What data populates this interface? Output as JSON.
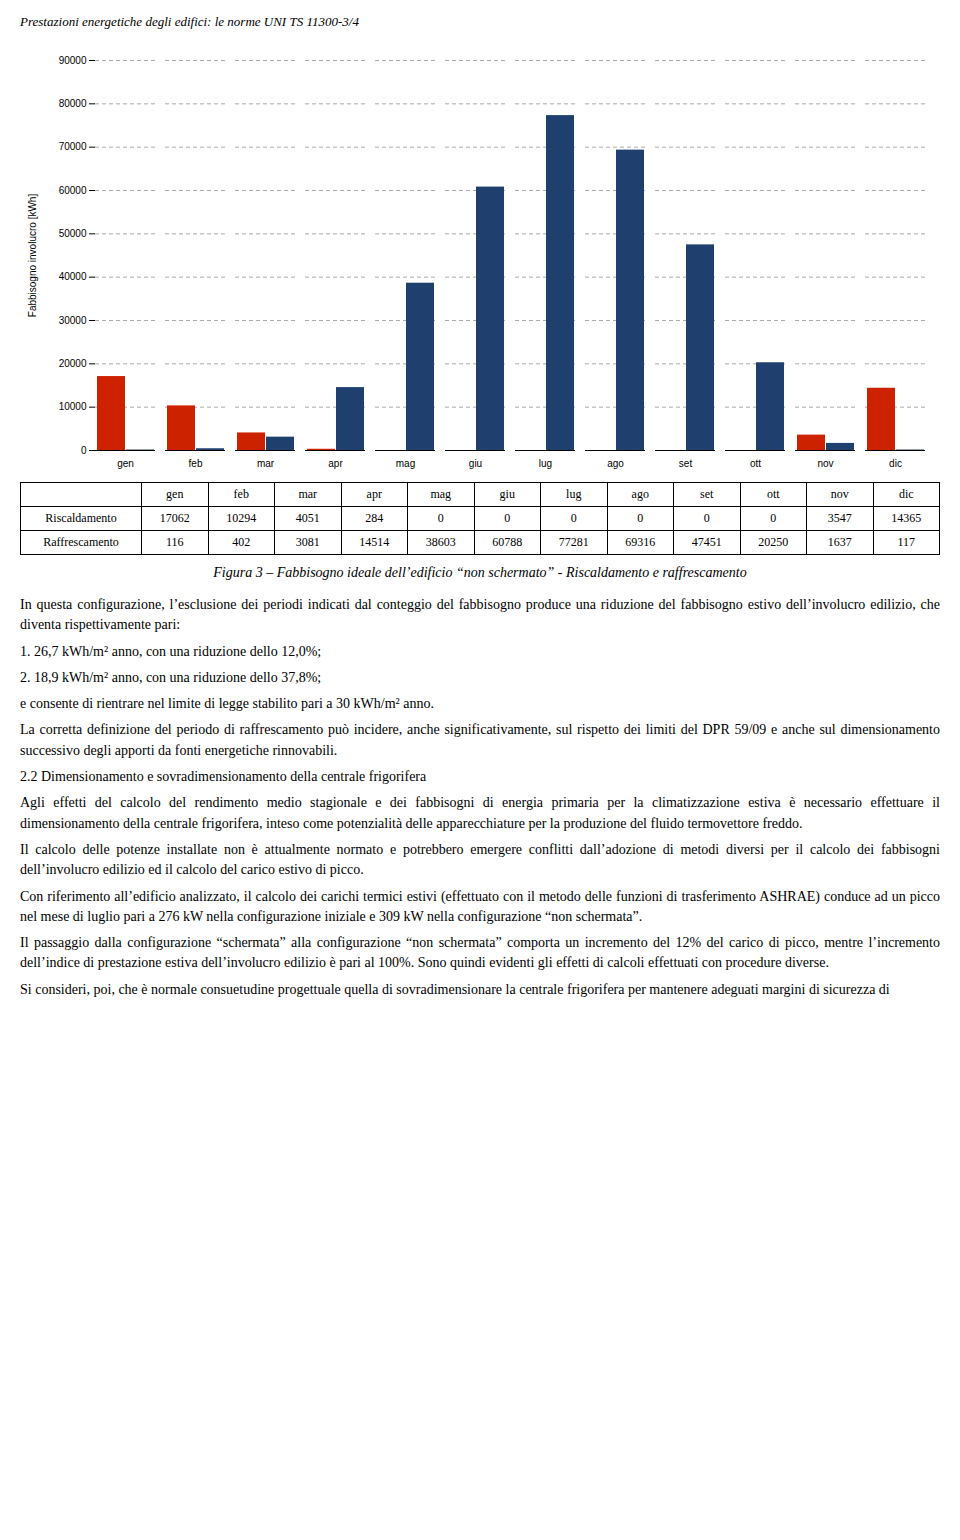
{
  "chart_data": {
    "type": "bar",
    "title": "Figura 3 – Fabbisogno ideale dell’edificio “non schermato” - Riscaldamento e raffrescamento",
    "subtitle": "Prestazioni energetiche degli edifici: le norme UNI TS 11300-3/4",
    "categories": [
      "gen",
      "feb",
      "mar",
      "apr",
      "mag",
      "giu",
      "lug",
      "ago",
      "set",
      "ott",
      "nov",
      "dic"
    ],
    "series": [
      {
        "name": "Riscaldamento",
        "color": "#cc2200",
        "values": [
          17062,
          10294,
          4051,
          284,
          0,
          0,
          0,
          0,
          0,
          0,
          3547,
          14365
        ]
      },
      {
        "name": "Raffrescamento",
        "color": "#1f3f6e",
        "values": [
          116,
          402,
          3081,
          14514,
          38603,
          60788,
          77281,
          69316,
          47451,
          20250,
          1637,
          117
        ]
      }
    ],
    "ylabel": "Fabbisogno involucro [kWh]",
    "ylim": [
      0,
      90000
    ],
    "yticks": [
      0,
      10000,
      20000,
      30000,
      40000,
      50000,
      60000,
      70000,
      80000,
      90000
    ],
    "grid": true,
    "annotations": [
      "In questa configurazione, l’esclusione dei periodi indicati dal conteggio del fabbisogno produce una riduzione del fabbisogno estivo dell’involucro edilizio, che diventa rispettivamente pari:",
      "1. 26,7 kWh/m² anno, con una riduzione dello 12,0%;",
      "2. 18,9 kWh/m² anno, con una riduzione dello 37,8%;",
      "e consente di rientrare nel limite di legge stabilito pari a 30 kWh/m² anno.",
      "La corretta definizione del periodo di raffrescamento può incidere, anche significativamente, sul rispetto dei limiti del DPR 59/09 e anche sul dimensionamento successivo degli apporti da fonti energetiche rinnovabili.",
      "2.2 Dimensionamento e sovradimensionamento della centrale frigorifera",
      "Agli effetti del calcolo del rendimento medio stagionale e dei fabbisogni di energia primaria per la climatizzazione estiva è necessario effettuare il dimensionamento della centrale frigorifera, inteso come potenzialità delle apparecchiature per la produzione del fluido termovettore freddo.",
      "Il calcolo delle potenze installate non è attualmente normato e potrebbero emergere conflitti dall’adozione di metodi diversi per il calcolo dei fabbisogni dell’involucro edilizio ed il calcolo del carico estivo di picco.",
      "Con riferimento all’edificio analizzato, il calcolo dei carichi termici estivi (effettuato con il metodo delle funzioni di trasferimento ASHRAE) conduce ad un picco nel mese di luglio pari a 276 kW nella configurazione iniziale e 309 kW nella configurazione “non schermata”.",
      "Il passaggio dalla configurazione “schermata” alla configurazione “non schermata” comporta un incremento del 12% del carico di picco, mentre l’incremento dell’indice di prestazione estiva dell’involucro edilizio è pari al 100%. Sono quindi evidenti gli effetti di calcoli effettuati con procedure diverse.",
      "Si consideri, poi, che è normale consuetudine progettuale quella di sovradimensionare la centrale frigorifera per mantenere adeguati margini di sicurezza di"
    ]
  }
}
